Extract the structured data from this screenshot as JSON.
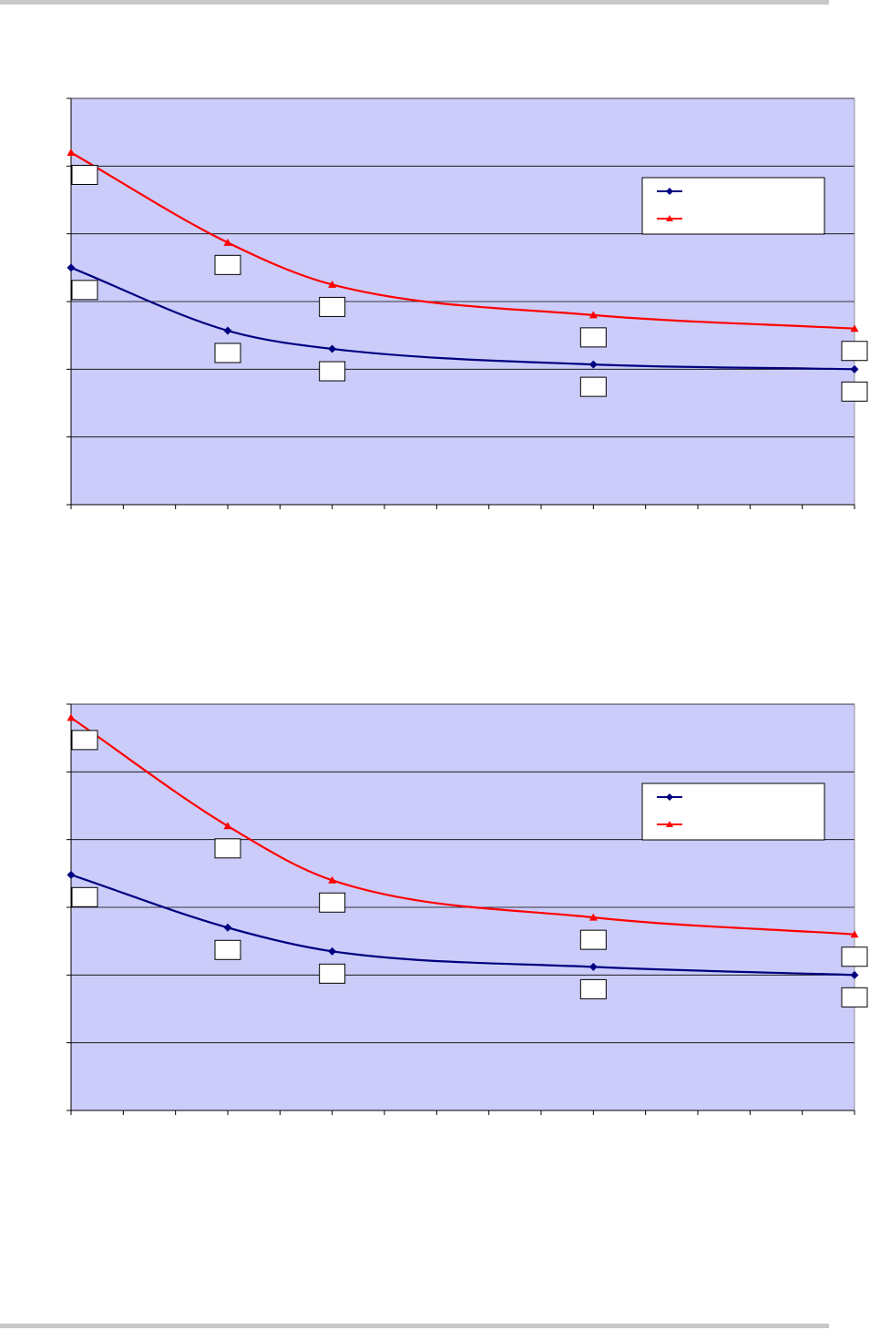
{
  "colors": {
    "plot_background": "#ccccfa",
    "gridline": "#000000",
    "series_blue": "#000080",
    "series_red": "#ff0000",
    "label_box_fill": "#ffffff",
    "page_rule": "#c8c8c8"
  },
  "chart_data": [
    {
      "type": "line",
      "grid": true,
      "legend_position": "top-right",
      "x": [
        0,
        3,
        5,
        10,
        15
      ],
      "xlim": [
        0,
        15
      ],
      "ylim": [
        0,
        6
      ],
      "series": [
        {
          "color": "#000080",
          "marker": "diamond",
          "values": [
            3.5,
            2.57,
            2.3,
            2.07,
            2.0
          ]
        },
        {
          "color": "#ff0000",
          "marker": "triangle",
          "values": [
            5.2,
            3.87,
            3.25,
            2.8,
            2.6
          ]
        }
      ],
      "data_labels": [
        "",
        "",
        "",
        "",
        ""
      ]
    },
    {
      "type": "line",
      "grid": true,
      "legend_position": "top-right",
      "x": [
        0,
        3,
        5,
        10,
        15
      ],
      "xlim": [
        0,
        15
      ],
      "ylim": [
        0,
        6
      ],
      "series": [
        {
          "color": "#000080",
          "marker": "diamond",
          "values": [
            3.48,
            2.7,
            2.35,
            2.12,
            2.0
          ]
        },
        {
          "color": "#ff0000",
          "marker": "triangle",
          "values": [
            5.8,
            4.2,
            3.4,
            2.85,
            2.6
          ]
        }
      ],
      "data_labels": [
        "",
        "",
        "",
        "",
        ""
      ]
    }
  ]
}
